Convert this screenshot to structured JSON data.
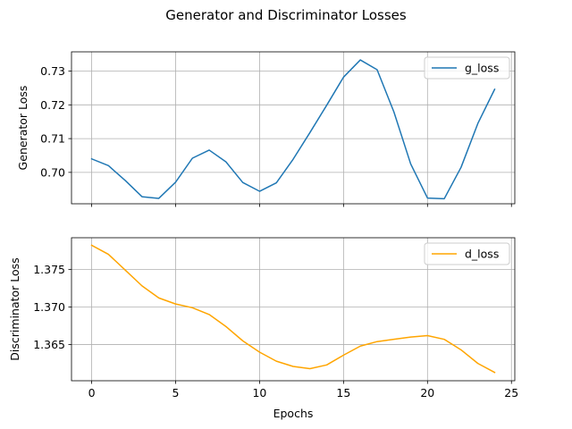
{
  "figure": {
    "title": "Generator and Discriminator Losses"
  },
  "chart_data": [
    {
      "type": "line",
      "title": "",
      "xlabel": "",
      "ylabel": "Generator Loss",
      "xlim": [
        -1.2,
        25.2
      ],
      "ylim": [
        0.6907,
        0.7357
      ],
      "xticks": [
        0,
        5,
        10,
        15,
        20,
        25
      ],
      "xticks_labeled": false,
      "yticks": [
        0.7,
        0.71,
        0.72,
        0.73
      ],
      "ytick_labels": [
        "0.70",
        "0.71",
        "0.72",
        "0.73"
      ],
      "grid": true,
      "legend_position": "top-right",
      "series": [
        {
          "name": "g_loss",
          "color": "#1f77b4",
          "x": [
            0,
            1,
            2,
            3,
            4,
            5,
            6,
            7,
            8,
            9,
            10,
            11,
            12,
            13,
            14,
            15,
            16,
            17,
            18,
            19,
            20,
            21,
            22,
            23,
            24
          ],
          "values": [
            0.704,
            0.702,
            0.6976,
            0.6928,
            0.6923,
            0.6971,
            0.7042,
            0.7066,
            0.7031,
            0.697,
            0.6944,
            0.6969,
            0.7039,
            0.7118,
            0.7199,
            0.7282,
            0.7333,
            0.7304,
            0.7179,
            0.7025,
            0.6924,
            0.6922,
            0.7015,
            0.7145,
            0.7246
          ]
        }
      ]
    },
    {
      "type": "line",
      "title": "",
      "xlabel": "Epochs",
      "ylabel": "Discriminator Loss",
      "xlim": [
        -1.2,
        25.2
      ],
      "ylim": [
        1.3602,
        1.3792
      ],
      "xticks": [
        0,
        5,
        10,
        15,
        20,
        25
      ],
      "xtick_labels": [
        "0",
        "5",
        "10",
        "15",
        "20",
        "25"
      ],
      "yticks": [
        1.365,
        1.37,
        1.375
      ],
      "ytick_labels": [
        "1.365",
        "1.370",
        "1.375"
      ],
      "grid": true,
      "legend_position": "top-right",
      "series": [
        {
          "name": "d_loss",
          "color": "#ffa500",
          "x": [
            0,
            1,
            2,
            3,
            4,
            5,
            6,
            7,
            8,
            9,
            10,
            11,
            12,
            13,
            14,
            15,
            16,
            17,
            18,
            19,
            20,
            21,
            22,
            23,
            24
          ],
          "values": [
            1.3782,
            1.377,
            1.3749,
            1.3728,
            1.3712,
            1.3704,
            1.3699,
            1.369,
            1.3674,
            1.3655,
            1.364,
            1.3628,
            1.3621,
            1.3618,
            1.3623,
            1.3636,
            1.3648,
            1.3654,
            1.3657,
            1.366,
            1.3662,
            1.3657,
            1.3643,
            1.3625,
            1.3613
          ]
        }
      ]
    }
  ]
}
